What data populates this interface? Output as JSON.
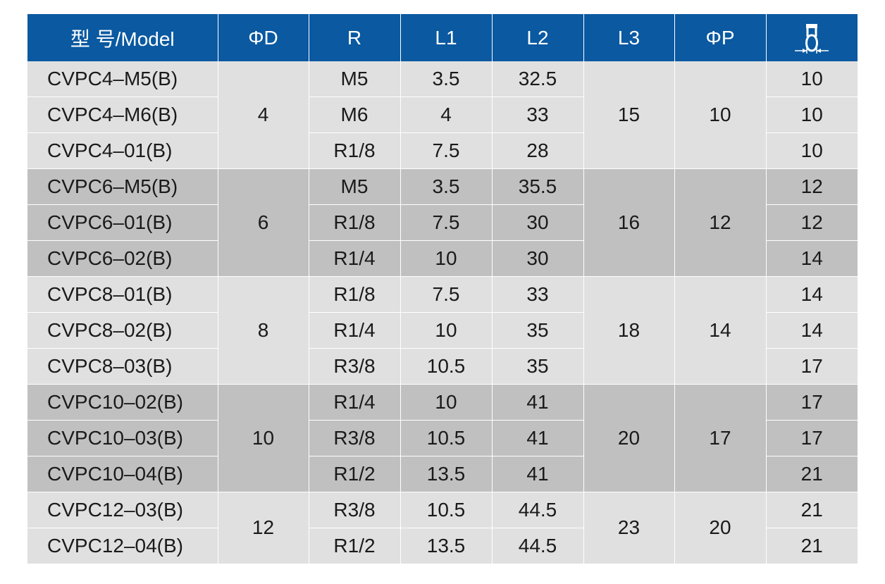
{
  "table": {
    "headers": [
      "型 号/Model",
      "ΦD",
      "R",
      "L1",
      "L2",
      "L3",
      "ΦP"
    ],
    "wrench_icon": "hex-width-dimension-icon",
    "groups": [
      {
        "shade": "light",
        "phi_d": "4",
        "l3": "15",
        "phi_p": "10",
        "rows": [
          {
            "model": "CVPC4–M5(B)",
            "r": "M5",
            "l1": "3.5",
            "l2": "32.5",
            "w": "10"
          },
          {
            "model": "CVPC4–M6(B)",
            "r": "M6",
            "l1": "4",
            "l2": "33",
            "w": "10"
          },
          {
            "model": "CVPC4–01(B)",
            "r": "R1/8",
            "l1": "7.5",
            "l2": "28",
            "w": "10"
          }
        ]
      },
      {
        "shade": "dark",
        "phi_d": "6",
        "l3": "16",
        "phi_p": "12",
        "rows": [
          {
            "model": "CVPC6–M5(B)",
            "r": "M5",
            "l1": "3.5",
            "l2": "35.5",
            "w": "12"
          },
          {
            "model": "CVPC6–01(B)",
            "r": "R1/8",
            "l1": "7.5",
            "l2": "30",
            "w": "12"
          },
          {
            "model": "CVPC6–02(B)",
            "r": "R1/4",
            "l1": "10",
            "l2": "30",
            "w": "14"
          }
        ]
      },
      {
        "shade": "light",
        "phi_d": "8",
        "l3": "18",
        "phi_p": "14",
        "rows": [
          {
            "model": "CVPC8–01(B)",
            "r": "R1/8",
            "l1": "7.5",
            "l2": "33",
            "w": "14"
          },
          {
            "model": "CVPC8–02(B)",
            "r": "R1/4",
            "l1": "10",
            "l2": "35",
            "w": "14"
          },
          {
            "model": "CVPC8–03(B)",
            "r": "R3/8",
            "l1": "10.5",
            "l2": "35",
            "w": "17"
          }
        ]
      },
      {
        "shade": "dark",
        "phi_d": "10",
        "l3": "20",
        "phi_p": "17",
        "rows": [
          {
            "model": "CVPC10–02(B)",
            "r": "R1/4",
            "l1": "10",
            "l2": "41",
            "w": "17"
          },
          {
            "model": "CVPC10–03(B)",
            "r": "R3/8",
            "l1": "10.5",
            "l2": "41",
            "w": "17"
          },
          {
            "model": "CVPC10–04(B)",
            "r": "R1/2",
            "l1": "13.5",
            "l2": "41",
            "w": "21"
          }
        ]
      },
      {
        "shade": "light",
        "phi_d": "12",
        "l3": "23",
        "phi_p": "20",
        "rows": [
          {
            "model": "CVPC12–03(B)",
            "r": "R3/8",
            "l1": "10.5",
            "l2": "44.5",
            "w": "21"
          },
          {
            "model": "CVPC12–04(B)",
            "r": "R1/2",
            "l1": "13.5",
            "l2": "44.5",
            "w": "21"
          }
        ]
      }
    ]
  }
}
